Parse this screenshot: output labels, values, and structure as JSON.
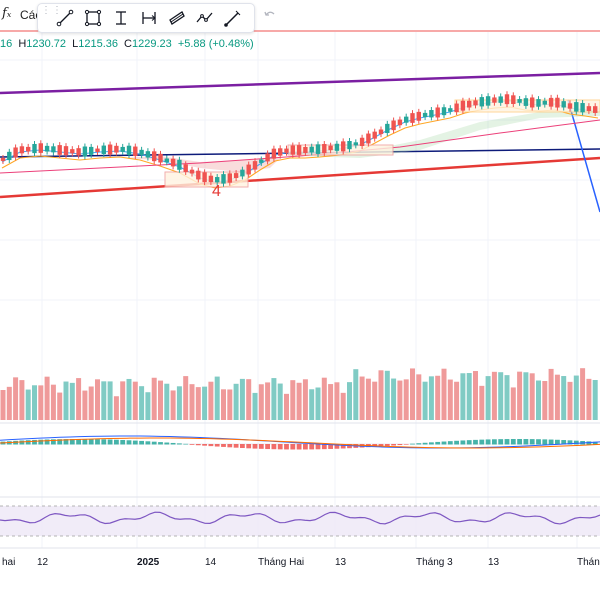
{
  "toolbar": {
    "fx_label": "fₓ",
    "indicators_label": "Các",
    "tools": [
      {
        "name": "trend-line-icon"
      },
      {
        "name": "rectangle-icon"
      },
      {
        "name": "text-cursor-icon"
      },
      {
        "name": "measure-range-icon"
      },
      {
        "name": "parallel-channel-icon"
      },
      {
        "name": "path-icon"
      },
      {
        "name": "brush-icon"
      }
    ]
  },
  "ohlc": {
    "open_partial": "16",
    "high_key": "H",
    "high": "1230.72",
    "low_key": "L",
    "low": "1215.36",
    "close_key": "C",
    "close": "1229.23",
    "change": "+5.88 (+0.48%)"
  },
  "annotation": {
    "wave_label": "4"
  },
  "x_axis": {
    "labels": [
      "hai",
      "12",
      "2025",
      "14",
      "Tháng Hai",
      "13",
      "Tháng 3",
      "13",
      "Tháng"
    ]
  },
  "colors": {
    "up": "#26a69a",
    "down": "#ef5350",
    "purple_line": "#7b1fa2",
    "red_line": "#e53935",
    "navy_line": "#0d1b7a",
    "blue_line": "#2962ff"
  },
  "chart_data": {
    "type": "candlestick",
    "panes": [
      "price",
      "volume",
      "macd",
      "rsi"
    ],
    "candles_direction_sequence": "mixed"
  }
}
